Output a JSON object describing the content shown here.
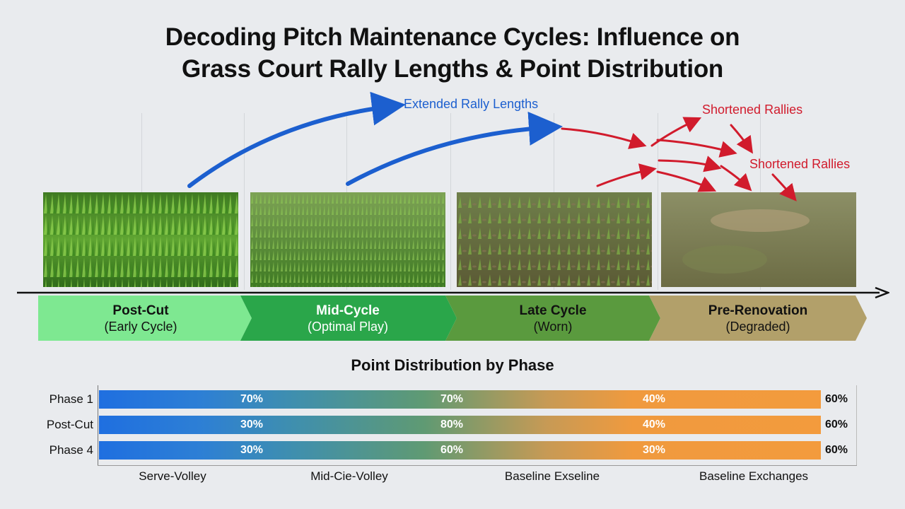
{
  "title": {
    "line1": "Decoding Pitch Maintenance Cycles: Influence on",
    "line2": "Grass Court Rally Lengths & Point Distribution"
  },
  "annotations": {
    "extended": "Extended Rally Lengths",
    "shortened_1": "Shortened Rallies",
    "shortened_2": "Shortened Rallies"
  },
  "phases": [
    {
      "name": "Post-Cut",
      "sub": "(Early Cycle)",
      "color": "#7ee891"
    },
    {
      "name": "Mid-Cycle",
      "sub": "(Optimal Play)",
      "color": "#2aa64a"
    },
    {
      "name": "Late Cycle",
      "sub": "(Worn)",
      "color": "#5a9a3e"
    },
    {
      "name": "Pre-Renovation",
      "sub": "(Degraded)",
      "color": "#b2a06a"
    }
  ],
  "point_distribution": {
    "title": "Point Distribution by Phase",
    "rows": [
      {
        "label": "Phase 1",
        "values": [
          "70%",
          "70%",
          "40%"
        ],
        "end": "60%"
      },
      {
        "label": "Post-Cut",
        "values": [
          "30%",
          "80%",
          "40%"
        ],
        "end": "60%"
      },
      {
        "label": "Phase 4",
        "values": [
          "30%",
          "60%",
          "30%"
        ],
        "end": "60%"
      }
    ],
    "categories": [
      "Serve-Volley",
      "Mid-Cie-Volley",
      "Baseline Exseline",
      "Baseline Exchanges"
    ]
  },
  "colors": {
    "blue_arrow": "#1c5fcf",
    "red_arrow": "#d11b2c",
    "bar_start": "#1f6fe0",
    "bar_end": "#f39b3d"
  }
}
